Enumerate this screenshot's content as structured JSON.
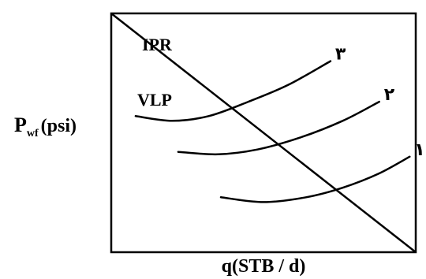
{
  "chart_data": {
    "type": "line",
    "title": "",
    "ylabel": {
      "main": "P",
      "subscript": "wf",
      "unit": "(psi)"
    },
    "xlabel": "q(STB / d)",
    "grid": false,
    "legend": "none",
    "ipr": {
      "name": "IPR",
      "points": [
        [
          0,
          100
        ],
        [
          100,
          0
        ]
      ]
    },
    "vlp_label": "VLP",
    "vlp_curves": [
      {
        "name": "۳",
        "points": [
          [
            8,
            57
          ],
          [
            20,
            55
          ],
          [
            32,
            57
          ],
          [
            45,
            63
          ],
          [
            58,
            70
          ],
          [
            72,
            80
          ]
        ]
      },
      {
        "name": "۲",
        "points": [
          [
            22,
            42
          ],
          [
            35,
            41
          ],
          [
            48,
            43
          ],
          [
            62,
            48
          ],
          [
            76,
            55
          ],
          [
            88,
            63
          ]
        ]
      },
      {
        "name": "۱",
        "points": [
          [
            36,
            23
          ],
          [
            50,
            21
          ],
          [
            64,
            23
          ],
          [
            76,
            27
          ],
          [
            88,
            33
          ],
          [
            98,
            40
          ]
        ]
      }
    ],
    "colors": {
      "line": "#000000",
      "background": "#ffffff"
    }
  }
}
